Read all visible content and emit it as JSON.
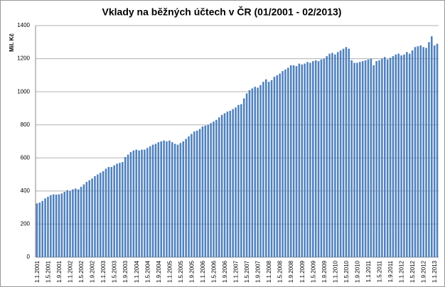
{
  "chart_data": {
    "type": "bar",
    "title": "Vklady na běžných účtech v ČR (01/2001 - 02/2013)",
    "y_label": "Mil. Kč",
    "categories": [
      "1.1.2001",
      null,
      null,
      null,
      "1.5.2001",
      null,
      null,
      null,
      "1.9.2001",
      null,
      null,
      null,
      "1.1.2002",
      null,
      null,
      null,
      "1.5.2002",
      null,
      null,
      null,
      "1.9.2002",
      null,
      null,
      null,
      "1.1.2003",
      null,
      null,
      null,
      "1.5.2003",
      null,
      null,
      null,
      "1.9.2003",
      null,
      null,
      null,
      "1.1.2004",
      null,
      null,
      null,
      "1.5.2004",
      null,
      null,
      null,
      "1.9.2004",
      null,
      null,
      null,
      "1.1.2005",
      null,
      null,
      null,
      "1.5.2005",
      null,
      null,
      null,
      "1.9.2005",
      null,
      null,
      null,
      "1.1.2006",
      null,
      null,
      null,
      "1.5.2006",
      null,
      null,
      null,
      "1.9.2006",
      null,
      null,
      null,
      "1.1.2007",
      null,
      null,
      null,
      "1.5.2007",
      null,
      null,
      null,
      "1.9.2007",
      null,
      null,
      null,
      "1.1.2008",
      null,
      null,
      null,
      "1.5.2008",
      null,
      null,
      null,
      "1.9.2008",
      null,
      null,
      null,
      "1.1.2009",
      null,
      null,
      null,
      "1.5.2009",
      null,
      null,
      null,
      "1.9.2009",
      null,
      null,
      null,
      "1.1.2010",
      null,
      null,
      null,
      "1.5.2010",
      null,
      null,
      null,
      "1.9.2010",
      null,
      null,
      null,
      "1.1.2011",
      null,
      null,
      null,
      "1.5.2011",
      null,
      null,
      null,
      "1.9.2011",
      null,
      null,
      null,
      "1.1.2012",
      null,
      null,
      null,
      "1.5.2012",
      null,
      null,
      null,
      "1.9.2012",
      null,
      null,
      null,
      "1.1.2013",
      null
    ],
    "values": [
      325,
      330,
      340,
      355,
      365,
      375,
      380,
      378,
      380,
      385,
      395,
      405,
      400,
      410,
      415,
      410,
      425,
      440,
      455,
      465,
      475,
      490,
      500,
      510,
      520,
      535,
      545,
      545,
      555,
      565,
      570,
      575,
      605,
      620,
      635,
      645,
      650,
      645,
      650,
      650,
      660,
      670,
      680,
      685,
      695,
      700,
      705,
      700,
      705,
      695,
      685,
      680,
      690,
      700,
      715,
      730,
      745,
      760,
      765,
      775,
      790,
      795,
      800,
      810,
      820,
      830,
      845,
      860,
      870,
      880,
      885,
      895,
      905,
      920,
      925,
      960,
      990,
      1010,
      1020,
      1030,
      1025,
      1040,
      1060,
      1075,
      1060,
      1070,
      1090,
      1100,
      1110,
      1125,
      1135,
      1145,
      1160,
      1160,
      1155,
      1170,
      1165,
      1170,
      1180,
      1175,
      1185,
      1190,
      1185,
      1195,
      1200,
      1215,
      1230,
      1235,
      1225,
      1240,
      1250,
      1260,
      1270,
      1260,
      1190,
      1175,
      1175,
      1180,
      1185,
      1190,
      1195,
      1200,
      1160,
      1185,
      1190,
      1200,
      1210,
      1195,
      1205,
      1215,
      1225,
      1230,
      1220,
      1225,
      1240,
      1230,
      1250,
      1270,
      1275,
      1280,
      1270,
      1265,
      1300,
      1335,
      1280,
      1290
    ],
    "color": "#4f81bd",
    "ylim": [
      0,
      1400
    ],
    "yticks": [
      0,
      200,
      400,
      600,
      800,
      1000,
      1200,
      1400
    ],
    "grid": true
  }
}
